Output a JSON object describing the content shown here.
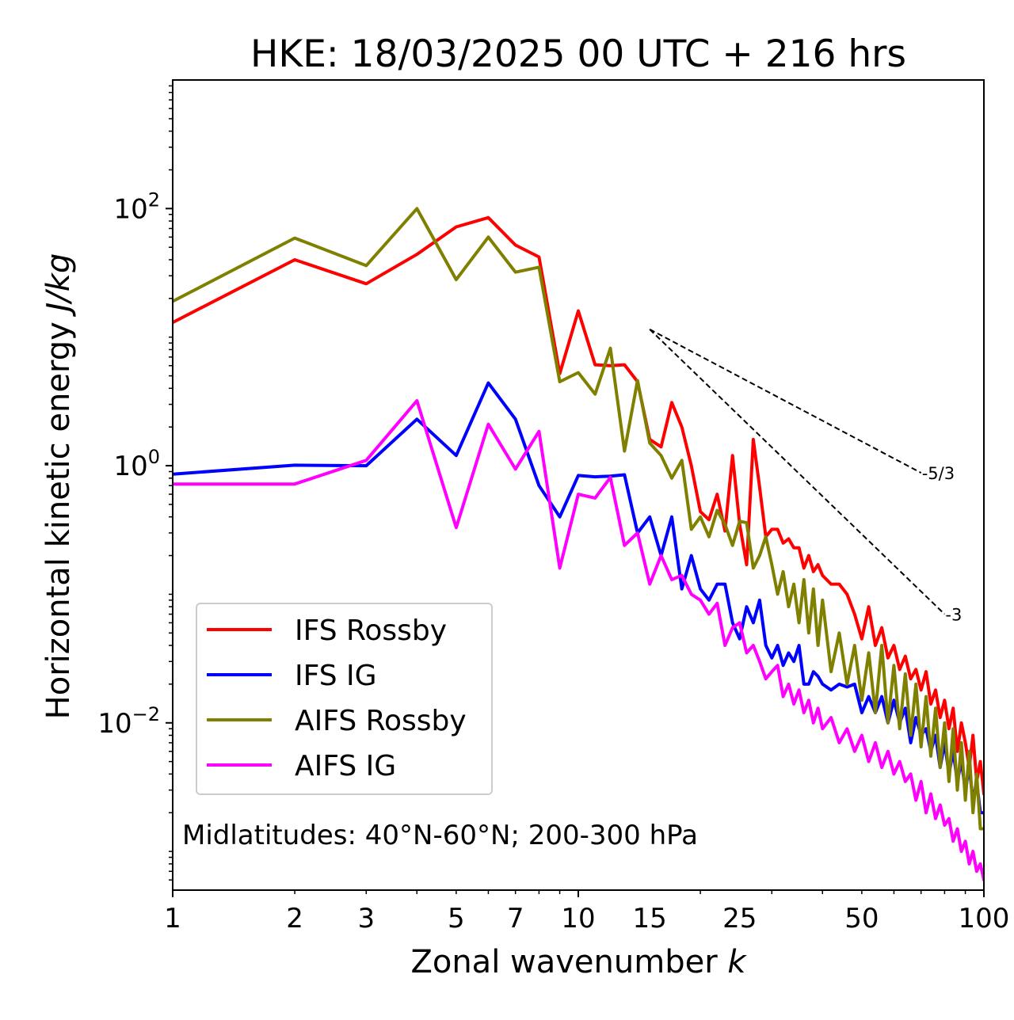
{
  "chart_data": {
    "type": "line",
    "title": "HKE: 18/03/2025 00 UTC + 216 hrs",
    "xlabel": "Zonal wavenumber ",
    "xlabel_var": "k",
    "ylabel": "Horizontal kinetic energy ",
    "ylabel_units": "J/kg",
    "xscale": "log",
    "yscale": "log",
    "xlim": [
      1,
      100
    ],
    "ylim": [
      0.0005,
      1000
    ],
    "x_ticks": [
      {
        "value": 1,
        "label": "1"
      },
      {
        "value": 2,
        "label": "2"
      },
      {
        "value": 3,
        "label": "3"
      },
      {
        "value": 5,
        "label": "5"
      },
      {
        "value": 7,
        "label": "7"
      },
      {
        "value": 10,
        "label": "10"
      },
      {
        "value": 15,
        "label": "15"
      },
      {
        "value": 25,
        "label": "25"
      },
      {
        "value": 50,
        "label": "50"
      },
      {
        "value": 100,
        "label": "100"
      }
    ],
    "y_ticks": [
      {
        "value": 100,
        "base": "10",
        "exp": "2"
      },
      {
        "value": 1,
        "base": "10",
        "exp": "0"
      },
      {
        "value": 0.01,
        "base": "10",
        "exp": "−2"
      }
    ],
    "annotation": "Midlatitudes: 40°N-60°N; 200-300 hPa",
    "legend": {
      "placement": "lower-left"
    },
    "reference_lines": [
      {
        "label": "-5/3",
        "x": [
          15,
          70
        ],
        "y": [
          11.5,
          0.88
        ],
        "color": "#000000",
        "style": "dashed"
      },
      {
        "label": "-3",
        "x": [
          15,
          80
        ],
        "y": [
          11.5,
          0.07
        ],
        "color": "#000000",
        "style": "dashed"
      }
    ],
    "series": [
      {
        "name": "IFS Rossby",
        "color": "#ff0000",
        "x": [
          1,
          2,
          3,
          4,
          5,
          6,
          7,
          8,
          9,
          10,
          11,
          12,
          13,
          14,
          15,
          16,
          17,
          18,
          19,
          20,
          21,
          22,
          23,
          24,
          25,
          26,
          27,
          28,
          29,
          30,
          31,
          32,
          33,
          34,
          35,
          36,
          37,
          38,
          39,
          40,
          42,
          44,
          46,
          48,
          50,
          52,
          54,
          56,
          58,
          60,
          62,
          64,
          66,
          68,
          70,
          72,
          74,
          76,
          78,
          80,
          82,
          84,
          86,
          88,
          90,
          92,
          94,
          96,
          98,
          100
        ],
        "y": [
          13,
          40,
          26,
          44,
          72,
          85,
          52,
          42,
          5.2,
          16,
          6.1,
          6,
          6.1,
          4.5,
          1.6,
          1.4,
          3.1,
          2,
          1,
          0.44,
          0.38,
          0.6,
          0.31,
          1.2,
          0.35,
          0.17,
          1.6,
          0.68,
          0.28,
          0.32,
          0.32,
          0.25,
          0.27,
          0.23,
          0.23,
          0.16,
          0.2,
          0.15,
          0.17,
          0.14,
          0.12,
          0.12,
          0.1,
          0.07,
          0.045,
          0.08,
          0.04,
          0.055,
          0.032,
          0.04,
          0.026,
          0.033,
          0.022,
          0.026,
          0.018,
          0.025,
          0.014,
          0.018,
          0.011,
          0.015,
          0.009,
          0.013,
          0.006,
          0.01,
          0.007,
          0.0045,
          0.008,
          0.0035,
          0.005,
          0.0028
        ]
      },
      {
        "name": "IFS IG",
        "color": "#0000ff",
        "x": [
          1,
          2,
          3,
          4,
          5,
          6,
          7,
          8,
          9,
          10,
          11,
          12,
          13,
          14,
          15,
          16,
          17,
          18,
          19,
          20,
          21,
          22,
          23,
          24,
          25,
          26,
          27,
          28,
          29,
          30,
          31,
          32,
          33,
          34,
          35,
          36,
          37,
          38,
          39,
          40,
          42,
          44,
          46,
          48,
          50,
          52,
          54,
          56,
          58,
          60,
          62,
          64,
          66,
          68,
          70,
          72,
          74,
          76,
          78,
          80,
          82,
          84,
          86,
          88,
          90,
          92,
          94,
          96,
          98,
          100
        ],
        "y": [
          0.86,
          1.01,
          1,
          2.3,
          1.2,
          4.4,
          2.3,
          0.7,
          0.4,
          0.84,
          0.82,
          0.83,
          0.85,
          0.3,
          0.4,
          0.2,
          0.4,
          0.11,
          0.2,
          0.11,
          0.09,
          0.12,
          0.12,
          0.06,
          0.045,
          0.08,
          0.06,
          0.09,
          0.04,
          0.032,
          0.04,
          0.028,
          0.035,
          0.03,
          0.04,
          0.02,
          0.02,
          0.025,
          0.023,
          0.02,
          0.018,
          0.02,
          0.019,
          0.02,
          0.012,
          0.016,
          0.012,
          0.016,
          0.01,
          0.015,
          0.01,
          0.013,
          0.007,
          0.011,
          0.008,
          0.009,
          0.006,
          0.008,
          0.0045,
          0.007,
          0.004,
          0.006,
          0.0035,
          0.005,
          0.003,
          0.0045,
          0.0025,
          0.0035,
          0.002,
          0.002
        ]
      },
      {
        "name": "AIFS Rossby",
        "color": "#808000",
        "x": [
          1,
          2,
          3,
          4,
          5,
          6,
          7,
          8,
          9,
          10,
          11,
          12,
          13,
          14,
          15,
          16,
          17,
          18,
          19,
          20,
          21,
          22,
          23,
          24,
          25,
          26,
          27,
          28,
          29,
          30,
          31,
          32,
          33,
          34,
          35,
          36,
          37,
          38,
          39,
          40,
          42,
          44,
          46,
          48,
          50,
          52,
          54,
          56,
          58,
          60,
          62,
          64,
          66,
          68,
          70,
          72,
          74,
          76,
          78,
          80,
          82,
          84,
          86,
          88,
          90,
          92,
          94,
          96,
          98,
          100
        ],
        "y": [
          19,
          59,
          36,
          100,
          28,
          60,
          32,
          35,
          4.5,
          5.3,
          3.6,
          8.2,
          1.3,
          4.6,
          1.5,
          1.2,
          0.8,
          1.1,
          0.32,
          0.4,
          0.28,
          0.45,
          0.35,
          0.24,
          0.37,
          0.36,
          0.16,
          0.2,
          0.28,
          0.17,
          0.1,
          0.15,
          0.08,
          0.12,
          0.06,
          0.13,
          0.05,
          0.11,
          0.04,
          0.09,
          0.025,
          0.05,
          0.02,
          0.04,
          0.015,
          0.035,
          0.012,
          0.04,
          0.01,
          0.028,
          0.009,
          0.024,
          0.008,
          0.02,
          0.0065,
          0.016,
          0.0055,
          0.013,
          0.0045,
          0.01,
          0.0035,
          0.009,
          0.003,
          0.007,
          0.0025,
          0.006,
          0.002,
          0.004,
          0.0015,
          0.0015
        ]
      },
      {
        "name": "AIFS IG",
        "color": "#ff00ff",
        "x": [
          1,
          2,
          3,
          4,
          5,
          6,
          7,
          8,
          9,
          10,
          11,
          12,
          13,
          14,
          15,
          16,
          17,
          18,
          19,
          20,
          21,
          22,
          23,
          24,
          25,
          26,
          27,
          28,
          29,
          30,
          31,
          32,
          33,
          34,
          35,
          36,
          37,
          38,
          39,
          40,
          42,
          44,
          46,
          48,
          50,
          52,
          54,
          56,
          58,
          60,
          62,
          64,
          66,
          68,
          70,
          72,
          74,
          76,
          78,
          80,
          82,
          84,
          86,
          88,
          90,
          92,
          94,
          96,
          98,
          100
        ],
        "y": [
          0.72,
          0.72,
          1.1,
          3.2,
          0.33,
          2.1,
          0.94,
          1.85,
          0.16,
          0.6,
          0.56,
          0.81,
          0.24,
          0.3,
          0.12,
          0.2,
          0.13,
          0.14,
          0.1,
          0.09,
          0.07,
          0.085,
          0.04,
          0.055,
          0.06,
          0.035,
          0.04,
          0.03,
          0.022,
          0.025,
          0.028,
          0.016,
          0.02,
          0.014,
          0.018,
          0.012,
          0.015,
          0.01,
          0.013,
          0.009,
          0.011,
          0.007,
          0.009,
          0.006,
          0.008,
          0.005,
          0.007,
          0.0045,
          0.006,
          0.004,
          0.005,
          0.0035,
          0.004,
          0.0025,
          0.0035,
          0.002,
          0.0028,
          0.0018,
          0.0023,
          0.0016,
          0.0018,
          0.0012,
          0.0015,
          0.001,
          0.0012,
          0.0008,
          0.001,
          0.0007,
          0.0008,
          0.0006
        ]
      }
    ]
  }
}
